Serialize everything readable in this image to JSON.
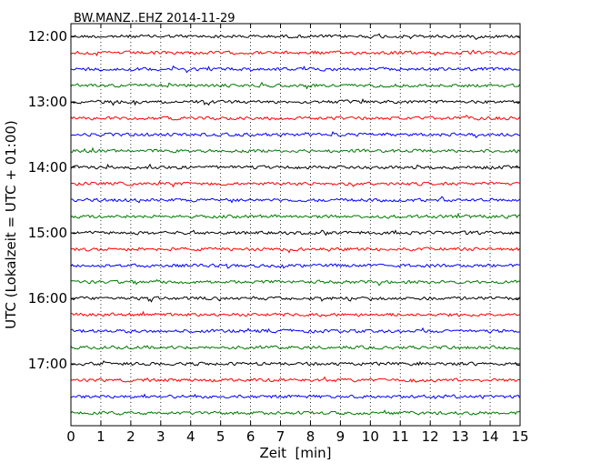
{
  "chart_data": {
    "type": "line",
    "title": "BW.MANZ..EHZ 2014-11-29",
    "xlabel": "Zeit  [min]",
    "ylabel": "UTC (Lokalzeit = UTC + 01:00)",
    "xlim": [
      0,
      15
    ],
    "x_ticks": [
      "0",
      "1",
      "2",
      "3",
      "4",
      "5",
      "6",
      "7",
      "8",
      "9",
      "10",
      "11",
      "12",
      "13",
      "14",
      "15"
    ],
    "y_tick_labels": [
      "12:00",
      "13:00",
      "14:00",
      "15:00",
      "16:00",
      "17:00"
    ],
    "grid": "vertical dotted",
    "trace_start": "12:00",
    "trace_interval_min": 15,
    "trace_count": 24,
    "trace_colors": [
      "#000000",
      "#ff0000",
      "#0000ff",
      "#007a00"
    ]
  }
}
